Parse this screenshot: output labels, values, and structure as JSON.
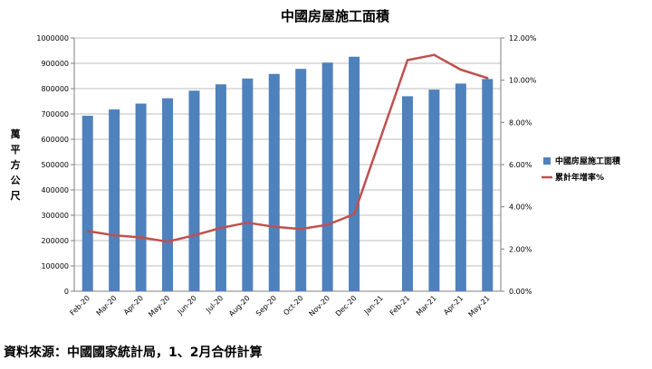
{
  "chart_data": {
    "type": "bar",
    "title": "中國房屋施工面積",
    "ylabel": "萬平方公尺",
    "categories": [
      "Feb-20",
      "Mar-20",
      "Apr-20",
      "May-20",
      "Jun-20",
      "Jul-20",
      "Aug-20",
      "Sep-20",
      "Oct-20",
      "Nov-20",
      "Dec-20",
      "Jan-21",
      "Feb-21",
      "Mar-21",
      "Apr-21",
      "May-21"
    ],
    "series": [
      {
        "name": "中國房屋施工面積",
        "type": "bar",
        "axis": "left",
        "color": "#4F81BD",
        "values": [
          693000,
          718000,
          741000,
          762000,
          792000,
          817000,
          840000,
          858000,
          878000,
          903000,
          926000,
          null,
          770000,
          796000,
          820000,
          838000
        ]
      },
      {
        "name": "累計年增率%",
        "type": "line",
        "axis": "right",
        "color": "#C0504D",
        "values": [
          2.85,
          2.65,
          2.55,
          2.35,
          2.65,
          3.0,
          3.25,
          3.05,
          2.95,
          3.15,
          3.65,
          null,
          10.95,
          11.2,
          10.5,
          10.1
        ]
      }
    ],
    "y_left": {
      "min": 0,
      "max": 1000000,
      "step": 100000,
      "ticks": [
        "0",
        "100000",
        "200000",
        "300000",
        "400000",
        "500000",
        "600000",
        "700000",
        "800000",
        "900000",
        "1000000"
      ]
    },
    "y_right": {
      "min": 0,
      "max": 12,
      "step": 2,
      "ticks": [
        "0.00%",
        "2.00%",
        "4.00%",
        "6.00%",
        "8.00%",
        "10.00%",
        "12.00%"
      ]
    },
    "grid": true,
    "legend_position": "right"
  },
  "source_note": "資料來源：中國國家統計局，1、2月合併計算"
}
